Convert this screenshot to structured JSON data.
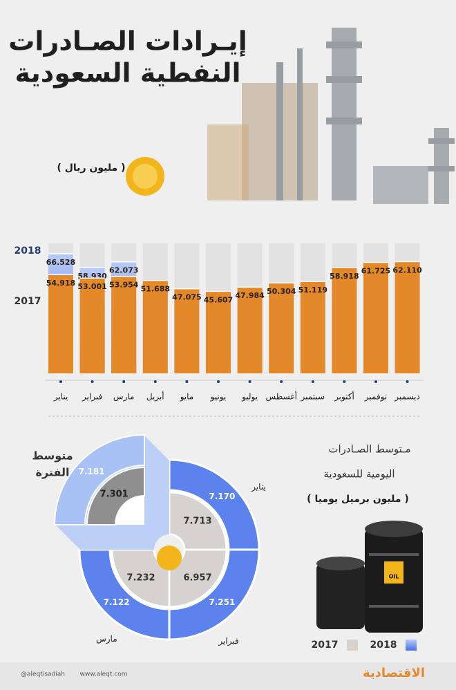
{
  "header": {
    "title_lines": [
      "إيـرادات الصـادرات",
      "النفطية السعودية"
    ],
    "unit": "( مليون ريال )"
  },
  "chart_data": [
    {
      "type": "bar",
      "categories": [
        "يناير",
        "فبراير",
        "مارس",
        "أبريل",
        "مايو",
        "يونيو",
        "يوليو",
        "أغسطس",
        "سبتمبر",
        "أكتوبر",
        "نوفمبر",
        "ديسمبر"
      ],
      "series": [
        {
          "name": "2018",
          "color": "#4a6fe6",
          "values": [
            66.528,
            58.93,
            62.073,
            null,
            null,
            null,
            null,
            null,
            null,
            null,
            null,
            null
          ],
          "value_labels": [
            "66.528",
            "58.930",
            "62.073",
            null,
            null,
            null,
            null,
            null,
            null,
            null,
            null,
            null
          ]
        },
        {
          "name": "2017",
          "color": "#e3892a",
          "values": [
            54.918,
            53.001,
            53.954,
            51.688,
            47.075,
            45.607,
            47.984,
            50.304,
            51.119,
            58.918,
            61.725,
            62.11
          ],
          "value_labels": [
            "54.918",
            "53.001",
            "53.954",
            "51.688",
            "47.075",
            "45.607",
            "47.984",
            "50.304",
            "51.119",
            "58.918",
            "61.725",
            "62.110"
          ]
        }
      ]
    },
    {
      "type": "donut",
      "title_lines": [
        "مـتوسط الصـادرات",
        "اليومية للسعودية"
      ],
      "unit": "( مليون برميل يوميا )",
      "categories": [
        "يناير",
        "فبراير",
        "مارس"
      ],
      "series": [
        {
          "name": "2017",
          "color": "#d6d2cf",
          "values": [
            7.713,
            6.957,
            7.232
          ],
          "value_labels": [
            "7.713",
            "6.957",
            "7.232"
          ]
        },
        {
          "name": "2018",
          "color": "#5c82ee",
          "values": [
            7.17,
            7.251,
            7.122
          ],
          "value_labels": [
            "7.170",
            "7.251",
            "7.122"
          ]
        }
      ],
      "average": {
        "label_lines": [
          "متوسط",
          "الفترة"
        ],
        "values": [
          7.301,
          7.181
        ],
        "value_labels": [
          "7.301",
          "7.181"
        ]
      },
      "barrel_label": "OIL"
    }
  ],
  "footer": {
    "twitter": "@aleqtisadiah",
    "site": "www.aleqt.com",
    "logo": "الاقتصادية"
  }
}
